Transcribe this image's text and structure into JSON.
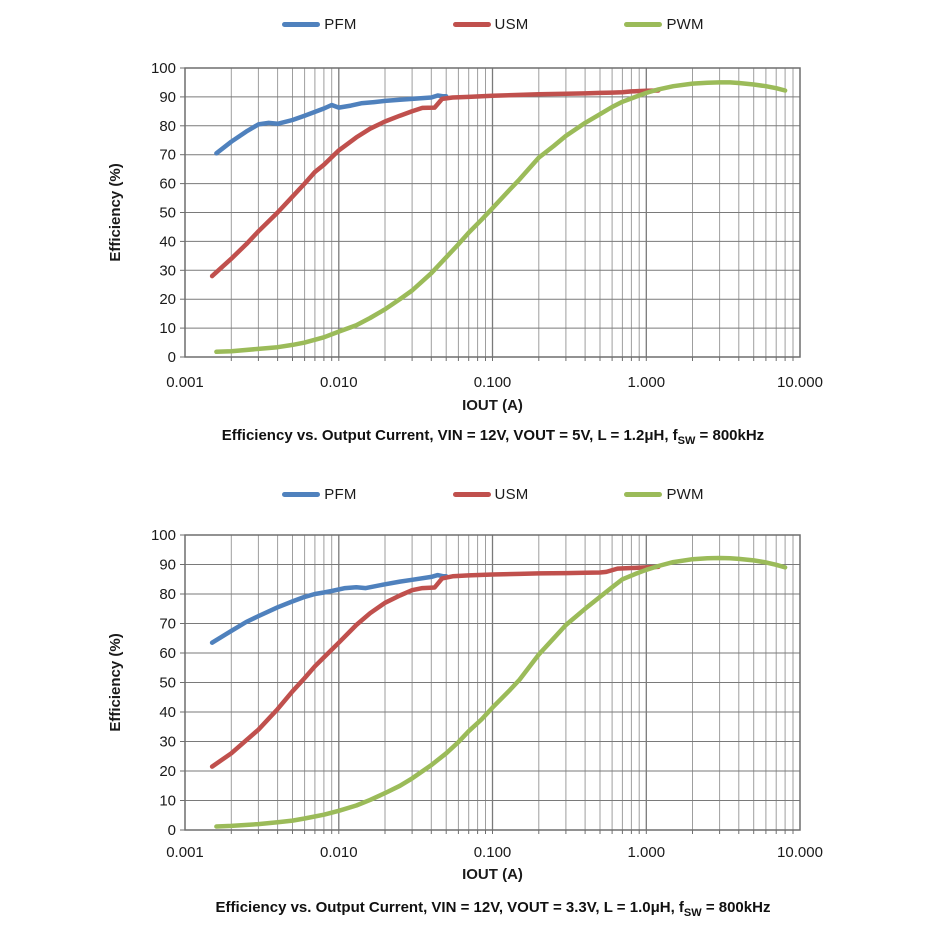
{
  "page_background": "#ffffff",
  "grid_color_minor": "#9e9e9e",
  "grid_color_major": "#7a7a7a",
  "frame_color": "#6e6e6e",
  "chart_data": [
    {
      "type": "line",
      "title_parts": {
        "prefix": "Efficiency vs. Output Current, VIN = 12V, VOUT = 5V, L = 1.2μH, f",
        "sub": "SW",
        "suffix": " = 800kHz"
      },
      "xlabel": "IOUT (A)",
      "ylabel": "Efficiency (%)",
      "x_scale": "log",
      "xlim": [
        0.001,
        10
      ],
      "ylim": [
        0,
        100
      ],
      "y_ticks": [
        0,
        10,
        20,
        30,
        40,
        50,
        60,
        70,
        80,
        90,
        100
      ],
      "x_tick_labels": [
        "0.001",
        "0.010",
        "0.100",
        "1.000",
        "10.000"
      ],
      "grid": true,
      "legend_position": "top",
      "series": [
        {
          "name": "PFM",
          "color": "#4F81BD",
          "points": [
            [
              0.0016,
              70.5
            ],
            [
              0.002,
              74.5
            ],
            [
              0.0025,
              78
            ],
            [
              0.003,
              80.5
            ],
            [
              0.0035,
              81
            ],
            [
              0.004,
              80.7
            ],
            [
              0.005,
              82
            ],
            [
              0.006,
              83.5
            ],
            [
              0.007,
              84.8
            ],
            [
              0.008,
              86
            ],
            [
              0.009,
              87.2
            ],
            [
              0.01,
              86.3
            ],
            [
              0.012,
              87
            ],
            [
              0.014,
              87.8
            ],
            [
              0.017,
              88.2
            ],
            [
              0.02,
              88.6
            ],
            [
              0.025,
              89
            ],
            [
              0.03,
              89.3
            ],
            [
              0.04,
              89.8
            ],
            [
              0.044,
              90.5
            ],
            [
              0.048,
              90.2
            ],
            [
              0.05,
              90.2
            ]
          ]
        },
        {
          "name": "USM",
          "color": "#C0504D",
          "points": [
            [
              0.0015,
              28
            ],
            [
              0.002,
              34
            ],
            [
              0.0025,
              39
            ],
            [
              0.003,
              43.5
            ],
            [
              0.004,
              50
            ],
            [
              0.005,
              55.5
            ],
            [
              0.006,
              60
            ],
            [
              0.007,
              64
            ],
            [
              0.008,
              66.5
            ],
            [
              0.01,
              71.5
            ],
            [
              0.013,
              76
            ],
            [
              0.016,
              79
            ],
            [
              0.02,
              81.5
            ],
            [
              0.025,
              83.5
            ],
            [
              0.03,
              85
            ],
            [
              0.035,
              86.2
            ],
            [
              0.042,
              86.3
            ],
            [
              0.047,
              89.3
            ],
            [
              0.055,
              89.8
            ],
            [
              0.07,
              90
            ],
            [
              0.1,
              90.4
            ],
            [
              0.15,
              90.7
            ],
            [
              0.2,
              90.9
            ],
            [
              0.3,
              91.1
            ],
            [
              0.4,
              91.2
            ],
            [
              0.5,
              91.4
            ],
            [
              0.6,
              91.5
            ],
            [
              0.7,
              91.6
            ],
            [
              0.8,
              91.9
            ],
            [
              1.0,
              92.1
            ],
            [
              1.2,
              92.2
            ]
          ]
        },
        {
          "name": "PWM",
          "color": "#9BBB59",
          "points": [
            [
              0.0016,
              1.8
            ],
            [
              0.002,
              2
            ],
            [
              0.003,
              2.8
            ],
            [
              0.004,
              3.4
            ],
            [
              0.005,
              4.2
            ],
            [
              0.006,
              5
            ],
            [
              0.008,
              6.8
            ],
            [
              0.01,
              8.8
            ],
            [
              0.013,
              11
            ],
            [
              0.016,
              13.5
            ],
            [
              0.02,
              16.5
            ],
            [
              0.025,
              20
            ],
            [
              0.03,
              23
            ],
            [
              0.04,
              29
            ],
            [
              0.05,
              34.5
            ],
            [
              0.06,
              39
            ],
            [
              0.07,
              43
            ],
            [
              0.085,
              47.5
            ],
            [
              0.1,
              51.5
            ],
            [
              0.13,
              58
            ],
            [
              0.15,
              61.5
            ],
            [
              0.2,
              69
            ],
            [
              0.25,
              73
            ],
            [
              0.3,
              76.5
            ],
            [
              0.4,
              81
            ],
            [
              0.5,
              84
            ],
            [
              0.6,
              86.5
            ],
            [
              0.7,
              88.3
            ],
            [
              0.85,
              90
            ],
            [
              1.0,
              91.4
            ],
            [
              1.2,
              92.6
            ],
            [
              1.5,
              93.7
            ],
            [
              2.0,
              94.6
            ],
            [
              2.5,
              94.9
            ],
            [
              3.0,
              95
            ],
            [
              3.5,
              95
            ],
            [
              4.0,
              94.8
            ],
            [
              5.0,
              94.3
            ],
            [
              6.0,
              93.7
            ],
            [
              7.0,
              93
            ],
            [
              8.0,
              92.2
            ]
          ]
        }
      ]
    },
    {
      "type": "line",
      "title_parts": {
        "prefix": "Efficiency vs. Output Current, VIN = 12V, VOUT = 3.3V, L = 1.0μH, f",
        "sub": "SW",
        "suffix": " = 800kHz"
      },
      "xlabel": "IOUT (A)",
      "ylabel": "Efficiency (%)",
      "x_scale": "log",
      "xlim": [
        0.001,
        10
      ],
      "ylim": [
        0,
        100
      ],
      "y_ticks": [
        0,
        10,
        20,
        30,
        40,
        50,
        60,
        70,
        80,
        90,
        100
      ],
      "x_tick_labels": [
        "0.001",
        "0.010",
        "0.100",
        "1.000",
        "10.000"
      ],
      "grid": true,
      "legend_position": "top",
      "series": [
        {
          "name": "PFM",
          "color": "#4F81BD",
          "points": [
            [
              0.0015,
              63.5
            ],
            [
              0.002,
              67.5
            ],
            [
              0.0025,
              70.5
            ],
            [
              0.003,
              72.5
            ],
            [
              0.004,
              75.5
            ],
            [
              0.005,
              77.5
            ],
            [
              0.006,
              79
            ],
            [
              0.007,
              80
            ],
            [
              0.008,
              80.5
            ],
            [
              0.009,
              81
            ],
            [
              0.011,
              82
            ],
            [
              0.013,
              82.3
            ],
            [
              0.015,
              82
            ],
            [
              0.02,
              83.3
            ],
            [
              0.025,
              84.2
            ],
            [
              0.03,
              84.8
            ],
            [
              0.04,
              85.8
            ],
            [
              0.044,
              86.4
            ],
            [
              0.048,
              86
            ],
            [
              0.05,
              86
            ]
          ]
        },
        {
          "name": "USM",
          "color": "#C0504D",
          "points": [
            [
              0.0015,
              21.5
            ],
            [
              0.002,
              26
            ],
            [
              0.003,
              34
            ],
            [
              0.004,
              41
            ],
            [
              0.005,
              47
            ],
            [
              0.006,
              51.5
            ],
            [
              0.007,
              55.5
            ],
            [
              0.008,
              58.5
            ],
            [
              0.01,
              63.5
            ],
            [
              0.013,
              69.5
            ],
            [
              0.016,
              73.5
            ],
            [
              0.02,
              77
            ],
            [
              0.025,
              79.5
            ],
            [
              0.03,
              81.3
            ],
            [
              0.035,
              82
            ],
            [
              0.042,
              82.2
            ],
            [
              0.047,
              85.3
            ],
            [
              0.055,
              86
            ],
            [
              0.07,
              86.3
            ],
            [
              0.1,
              86.6
            ],
            [
              0.15,
              86.8
            ],
            [
              0.2,
              87
            ],
            [
              0.3,
              87.1
            ],
            [
              0.4,
              87.2
            ],
            [
              0.5,
              87.3
            ],
            [
              0.55,
              87.5
            ],
            [
              0.65,
              88.6
            ],
            [
              0.8,
              88.8
            ],
            [
              1.0,
              89
            ],
            [
              1.2,
              89.2
            ]
          ]
        },
        {
          "name": "PWM",
          "color": "#9BBB59",
          "points": [
            [
              0.0016,
              1.2
            ],
            [
              0.002,
              1.4
            ],
            [
              0.003,
              2
            ],
            [
              0.004,
              2.6
            ],
            [
              0.005,
              3.2
            ],
            [
              0.006,
              3.9
            ],
            [
              0.008,
              5.2
            ],
            [
              0.01,
              6.5
            ],
            [
              0.013,
              8.3
            ],
            [
              0.016,
              10.2
            ],
            [
              0.02,
              12.5
            ],
            [
              0.025,
              15
            ],
            [
              0.03,
              17.5
            ],
            [
              0.04,
              22
            ],
            [
              0.05,
              26
            ],
            [
              0.06,
              29.8
            ],
            [
              0.07,
              33.5
            ],
            [
              0.085,
              37.5
            ],
            [
              0.1,
              41.5
            ],
            [
              0.13,
              47.5
            ],
            [
              0.15,
              51
            ],
            [
              0.2,
              59.5
            ],
            [
              0.25,
              65
            ],
            [
              0.3,
              69.5
            ],
            [
              0.4,
              75
            ],
            [
              0.5,
              79
            ],
            [
              0.6,
              82.3
            ],
            [
              0.7,
              85
            ],
            [
              0.85,
              86.8
            ],
            [
              1.0,
              88.2
            ],
            [
              1.2,
              89.5
            ],
            [
              1.5,
              90.8
            ],
            [
              2.0,
              91.8
            ],
            [
              2.5,
              92.1
            ],
            [
              3.0,
              92.2
            ],
            [
              3.5,
              92.1
            ],
            [
              4.0,
              91.9
            ],
            [
              5.0,
              91.4
            ],
            [
              6.0,
              90.7
            ],
            [
              7.0,
              89.9
            ],
            [
              8.0,
              89
            ]
          ]
        }
      ]
    }
  ]
}
